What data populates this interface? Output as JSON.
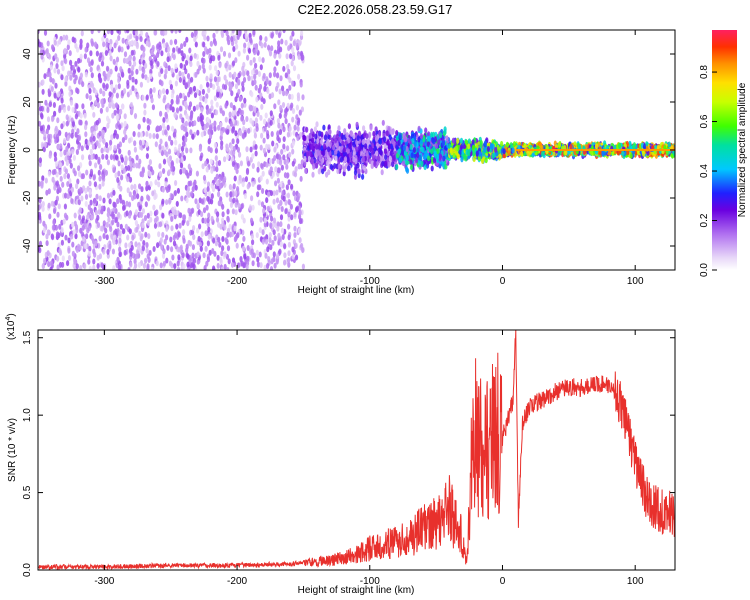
{
  "title": "C2E2.2026.058.23.59.G17",
  "chart_data": [
    {
      "type": "heatmap",
      "xlabel": "Height of straight line (km)",
      "ylabel": "Frequency (Hz)",
      "xlim": [
        -350,
        130
      ],
      "ylim": [
        -50,
        50
      ],
      "x_ticks": [
        "-300",
        "-200",
        "-100",
        "0",
        "100"
      ],
      "y_ticks": [
        "-40",
        "-20",
        "0",
        "20",
        "40"
      ],
      "colorbar": {
        "label": "Normalized spectral amplitude",
        "range": [
          0.0,
          0.97
        ],
        "ticks": [
          "0.0",
          "0.2",
          "0.4",
          "0.6",
          "0.8"
        ]
      },
      "features": [
        {
          "x_range": [
            -350,
            -150
          ],
          "freq_spread": [
            -50,
            50
          ],
          "amplitude": 0.15
        },
        {
          "x_range": [
            -150,
            -80
          ],
          "freq_center": 0,
          "freq_spread": [
            -12,
            12
          ],
          "amplitude": 0.25
        },
        {
          "x_range": [
            -80,
            -40
          ],
          "freq_center": 0,
          "freq_spread": [
            -10,
            10
          ],
          "amplitude": 0.45
        },
        {
          "x_range": [
            -40,
            0
          ],
          "freq_center": 0,
          "freq_spread": [
            -5,
            5
          ],
          "amplitude": 0.6
        },
        {
          "x_range": [
            0,
            130
          ],
          "freq_center": 0,
          "freq_spread": [
            -3,
            3
          ],
          "amplitude": 0.75
        }
      ]
    },
    {
      "type": "line",
      "xlabel": "Height of straight line (km)",
      "ylabel": "SNR (10 * v/v)",
      "y_scale_label": "(x10",
      "y_scale_exponent": "4",
      "y_scale_close": ")",
      "xlim": [
        -350,
        130
      ],
      "ylim": [
        0,
        1.55
      ],
      "x_ticks": [
        "-300",
        "-200",
        "-100",
        "0",
        "100"
      ],
      "y_ticks": [
        "0.0",
        "0.5",
        "1.0",
        "1.5"
      ],
      "series": [
        {
          "color": "#e8302c",
          "x": [
            -350,
            -300,
            -250,
            -200,
            -160,
            -130,
            -110,
            -100,
            -90,
            -80,
            -70,
            -60,
            -50,
            -40,
            -32,
            -27,
            -22,
            -15,
            -10,
            -5,
            0,
            5,
            8,
            10,
            12,
            15,
            20,
            30,
            40,
            50,
            60,
            70,
            80,
            85,
            90,
            95,
            100,
            105,
            110,
            115,
            120,
            125,
            130
          ],
          "y": [
            0.02,
            0.02,
            0.03,
            0.03,
            0.04,
            0.06,
            0.1,
            0.14,
            0.16,
            0.18,
            0.22,
            0.26,
            0.32,
            0.4,
            0.25,
            0.05,
            0.9,
            0.75,
            0.8,
            0.95,
            0.85,
            1.0,
            1.1,
            1.55,
            0.3,
            0.95,
            1.05,
            1.1,
            1.15,
            1.18,
            1.18,
            1.2,
            1.2,
            1.15,
            1.05,
            0.9,
            0.7,
            0.55,
            0.45,
            0.4,
            0.38,
            0.37,
            0.36
          ]
        }
      ]
    }
  ]
}
